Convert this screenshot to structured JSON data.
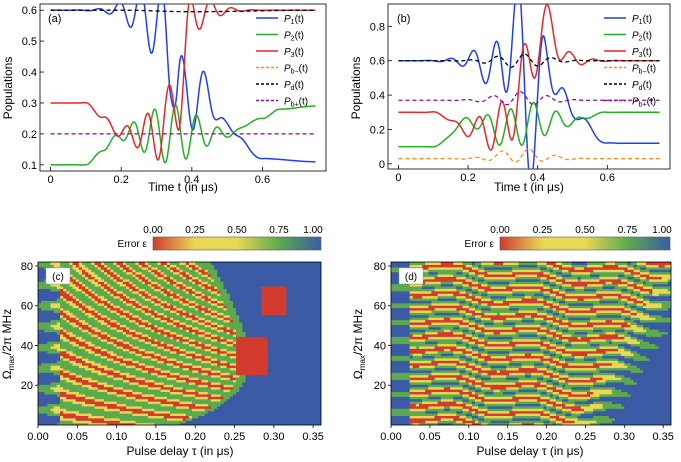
{
  "colors": {
    "P1": "#1f3ff0",
    "P2": "#22b022",
    "P3": "#e8262b",
    "Pbminus": "#ff8c1a",
    "Pd": "#000000",
    "Pbplus": "#8b0f9c",
    "heat_blue": "#3b5ba5",
    "heat_green": "#5daa4e",
    "heat_yellow": "#e8d855",
    "heat_red": "#d33b2f"
  },
  "chart_data": [
    {
      "panel": "(a)",
      "type": "line",
      "xlabel": "Time t (in μs)",
      "ylabel": "Populations",
      "xlim": [
        -0.03,
        0.78
      ],
      "ylim": [
        0.08,
        0.62
      ],
      "xticks": [
        "0",
        "0.2",
        "0.4",
        "0.6"
      ],
      "xtick_values": [
        0,
        0.2,
        0.4,
        0.6
      ],
      "yticks": [
        "0.1",
        "0.2",
        "0.3",
        "0.4",
        "0.5",
        "0.6"
      ],
      "ytick_values": [
        0.1,
        0.2,
        0.3,
        0.4,
        0.5,
        0.6
      ],
      "legend_position": "top-right",
      "series": [
        {
          "name": "P1(t)",
          "base": "P",
          "sub": "1",
          "color_key": "P1",
          "dashed": false,
          "x": [
            0,
            0.2,
            0.28,
            0.32,
            0.34,
            0.36,
            0.38,
            0.4,
            0.44,
            0.5,
            0.6,
            0.75
          ],
          "values": [
            0.6,
            0.6,
            0.58,
            0.52,
            0.46,
            0.35,
            0.3,
            0.32,
            0.33,
            0.22,
            0.12,
            0.11
          ]
        },
        {
          "name": "P2(t)",
          "base": "P",
          "sub": "2",
          "color_key": "P2",
          "dashed": false,
          "x": [
            0,
            0.1,
            0.15,
            0.2,
            0.3,
            0.4,
            0.5,
            0.6,
            0.65,
            0.75
          ],
          "values": [
            0.1,
            0.1,
            0.15,
            0.2,
            0.2,
            0.2,
            0.2,
            0.25,
            0.28,
            0.29
          ]
        },
        {
          "name": "P3(t)",
          "base": "P",
          "sub": "3",
          "color_key": "P3",
          "dashed": false,
          "x": [
            0,
            0.1,
            0.15,
            0.2,
            0.3,
            0.36,
            0.4,
            0.44,
            0.5,
            0.6,
            0.75
          ],
          "values": [
            0.3,
            0.3,
            0.25,
            0.2,
            0.2,
            0.3,
            0.58,
            0.6,
            0.6,
            0.6,
            0.6
          ]
        },
        {
          "name": "Pb-(t)",
          "base": "P",
          "sub": "b−",
          "color_key": "Pbminus",
          "dashed": true,
          "x": [
            0,
            0.75
          ],
          "values": [
            0.2,
            0.2
          ]
        },
        {
          "name": "Pd(t)",
          "base": "P",
          "sub": "d",
          "color_key": "Pd",
          "dashed": true,
          "x": [
            0,
            0.2,
            0.4,
            0.75
          ],
          "values": [
            0.6,
            0.6,
            0.595,
            0.6
          ]
        },
        {
          "name": "Pb+(t)",
          "base": "P",
          "sub": "b+",
          "color_key": "Pbplus",
          "dashed": true,
          "x": [
            0,
            0.75
          ],
          "values": [
            0.2,
            0.2
          ]
        }
      ]
    },
    {
      "panel": "(b)",
      "type": "line",
      "xlabel": "Time t (in μs)",
      "ylabel": "Populations",
      "xlim": [
        -0.03,
        0.78
      ],
      "ylim": [
        -0.03,
        0.93
      ],
      "xticks": [
        "0",
        "0.2",
        "0.4",
        "0.6"
      ],
      "xtick_values": [
        0,
        0.2,
        0.4,
        0.6
      ],
      "yticks": [
        "0",
        "0.2",
        "0.4",
        "0.6",
        "0.8"
      ],
      "ytick_values": [
        0,
        0.2,
        0.4,
        0.6,
        0.8
      ],
      "legend_position": "top-right",
      "series": [
        {
          "name": "P1(t)",
          "base": "P",
          "sub": "1",
          "color_key": "P1",
          "dashed": false,
          "x": [
            0,
            0.2,
            0.3,
            0.34,
            0.38,
            0.42,
            0.5,
            0.6,
            0.75
          ],
          "values": [
            0.6,
            0.6,
            0.55,
            0.88,
            0.1,
            0.6,
            0.3,
            0.12,
            0.12
          ]
        },
        {
          "name": "P2(t)",
          "base": "P",
          "sub": "2",
          "color_key": "P2",
          "dashed": false,
          "x": [
            0,
            0.1,
            0.2,
            0.3,
            0.4,
            0.5,
            0.6,
            0.75
          ],
          "values": [
            0.1,
            0.1,
            0.25,
            0.2,
            0.25,
            0.25,
            0.3,
            0.3
          ]
        },
        {
          "name": "P3(t)",
          "base": "P",
          "sub": "3",
          "color_key": "P3",
          "dashed": false,
          "x": [
            0,
            0.1,
            0.2,
            0.3,
            0.36,
            0.42,
            0.5,
            0.6,
            0.75
          ],
          "values": [
            0.3,
            0.3,
            0.2,
            0.2,
            0.5,
            0.8,
            0.6,
            0.6,
            0.6
          ]
        },
        {
          "name": "Pb-(t)",
          "base": "P",
          "sub": "b−",
          "color_key": "Pbminus",
          "dashed": true,
          "x": [
            0,
            0.2,
            0.35,
            0.5,
            0.75
          ],
          "values": [
            0.03,
            0.03,
            0.05,
            0.03,
            0.03
          ]
        },
        {
          "name": "Pd(t)",
          "base": "P",
          "sub": "d",
          "color_key": "Pd",
          "dashed": true,
          "x": [
            0,
            0.2,
            0.35,
            0.5,
            0.75
          ],
          "values": [
            0.6,
            0.6,
            0.6,
            0.6,
            0.6
          ]
        },
        {
          "name": "Pb+(t)",
          "base": "P",
          "sub": "b+",
          "color_key": "Pbplus",
          "dashed": true,
          "x": [
            0,
            0.2,
            0.35,
            0.5,
            0.75
          ],
          "values": [
            0.37,
            0.37,
            0.38,
            0.37,
            0.37
          ]
        }
      ]
    },
    {
      "panel": "(c)",
      "type": "heatmap",
      "xlabel": "Pulse delay τ (in μs)",
      "ylabel": "Ωmax/2π MHz",
      "ylabel_base": "Ω",
      "ylabel_sub": "max",
      "ylabel_rest": "/2π MHz",
      "xlim": [
        0,
        0.36
      ],
      "ylim": [
        0,
        82
      ],
      "xticks": [
        "0.00",
        "0.05",
        "0.10",
        "0.15",
        "0.20",
        "0.25",
        "0.30",
        "0.35"
      ],
      "xtick_values": [
        0,
        0.05,
        0.1,
        0.15,
        0.2,
        0.25,
        0.3,
        0.35
      ],
      "yticks": [
        "20",
        "40",
        "60",
        "80"
      ],
      "ytick_values": [
        20,
        40,
        60,
        80
      ],
      "colorbar_label": "Error ε",
      "colorbar_ticks": [
        "0.00",
        "0.25",
        "0.50",
        "0.75",
        "1.00"
      ],
      "colorbar_tick_values": [
        0,
        0.25,
        0.5,
        0.75,
        1
      ]
    },
    {
      "panel": "(d)",
      "type": "heatmap",
      "xlabel": "Pulse delay τ (in μs)",
      "ylabel": "Ωmax/2π MHz",
      "ylabel_base": "Ω",
      "ylabel_sub": "max",
      "ylabel_rest": "/2π MHz",
      "xlim": [
        0,
        0.36
      ],
      "ylim": [
        0,
        82
      ],
      "xticks": [
        "0.00",
        "0.05",
        "0.10",
        "0.15",
        "0.20",
        "0.25",
        "0.30",
        "0.35"
      ],
      "xtick_values": [
        0,
        0.05,
        0.1,
        0.15,
        0.2,
        0.25,
        0.3,
        0.35
      ],
      "yticks": [
        "20",
        "40",
        "60",
        "80"
      ],
      "ytick_values": [
        20,
        40,
        60,
        80
      ],
      "colorbar_label": "Error ε",
      "colorbar_ticks": [
        "0.00",
        "0.25",
        "0.50",
        "0.75",
        "1.00"
      ],
      "colorbar_tick_values": [
        0,
        0.25,
        0.5,
        0.75,
        1
      ]
    }
  ]
}
